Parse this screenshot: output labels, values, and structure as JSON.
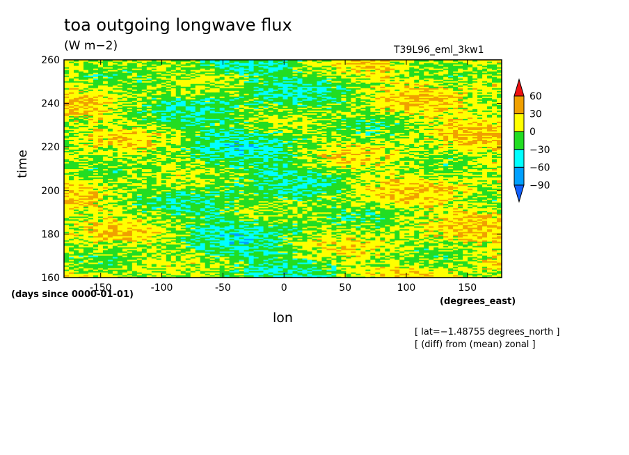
{
  "chart_data": {
    "type": "heatmap",
    "title": "toa outgoing longwave flux",
    "units": "(W m−2)",
    "run_label": "T39L96_eml_3kw1",
    "xlabel": "lon",
    "ylabel": "time",
    "x_units": "(degrees_east)",
    "y_units": "(days since 0000-01-01)",
    "xlim": [
      -180,
      178
    ],
    "ylim": [
      160,
      260
    ],
    "x_ticks": [
      -150,
      -100,
      -50,
      0,
      50,
      100,
      150
    ],
    "y_ticks": [
      160,
      180,
      200,
      220,
      240,
      260
    ],
    "colorbar": {
      "levels": [
        60,
        30,
        0,
        -30,
        -60,
        -90
      ],
      "colors_top_to_bottom": [
        "#ee1111",
        "#f0a000",
        "#ffff00",
        "#22dd22",
        "#00ffff",
        "#00a0ff",
        "#1060ff"
      ]
    },
    "notes": [
      "[ lat=−1.48755 degrees_north ]",
      "[ (diff) from (mean) zonal ]"
    ],
    "field_description": "anomalies mostly between -30 and 30; negative (green/cyan) anomalies concentrated between about -120 and 60 degrees east, positive (yellow/orange) to the east and west"
  }
}
